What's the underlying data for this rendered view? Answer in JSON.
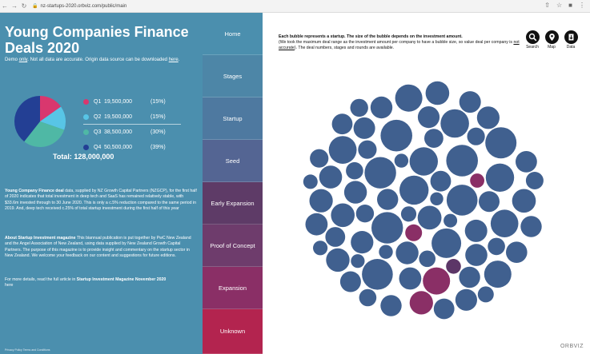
{
  "browser": {
    "url": "nz-startups-2020.orbviz.com/public/main",
    "back_icon": "back-arrow-icon",
    "forward_icon": "forward-arrow-icon",
    "reload_icon": "reload-icon"
  },
  "header": {
    "title": "Young Companies Finance Deals 2020",
    "demo_prefix": "Demo ",
    "demo_only": "only",
    "demo_middle": ". Not all data are accurate. Origin data source can be downloaded ",
    "demo_link": "here",
    "demo_suffix": "."
  },
  "pie": {
    "colors": [
      "#d9376e",
      "#58c5e6",
      "#4fb8a5",
      "#233f94"
    ],
    "legend": [
      {
        "q": "Q1",
        "value": "19,500,000",
        "pct": "(15%)"
      },
      {
        "q": "Q2",
        "value": "19,500,000",
        "pct": "(15%)"
      },
      {
        "q": "Q3",
        "value": "38,500,000",
        "pct": "(30%)"
      },
      {
        "q": "Q4",
        "value": "50,500,000",
        "pct": "(39%)"
      }
    ],
    "shares": [
      0.15,
      0.15,
      0.3,
      0.39
    ],
    "total_label": "Total:",
    "total_value": "128,000,000"
  },
  "paragraphs": {
    "p1_bold": "Young Company Finance deal",
    "p1_text": " data, supplied by NZ Growth Capital Partners (NZGCP), for the first half of 2020 indicates that total investment in deep tech and SaaS has remained relatively stable, with $33.6m invested through to 30 June 2020. This is only a c.5% reduction compared to the same period in 2019. And, deep tech received c.25% of total startup investment during the first half of this year",
    "p2_bold": "About Startup Investment magazine",
    "p2_text": " This biannual publication is put together by PwC New Zealand and the Angel Association of New Zealand, using data supplied by New Zealand Growth Capital Partners. The purpose of this magazine is to provide insight and commentary on the startup sector in New Zealand. We welcome your feedback on our content and suggestions for future editions.",
    "p3_text": "For more details, read the full article in ",
    "p3_bold": "Startup Investment Magazine November 2020",
    "p3_link": "here",
    "footer": "Privacy Policy  Terms and Conditions"
  },
  "tabs": [
    {
      "label": "Home",
      "color": "#4b8fae"
    },
    {
      "label": "Stages",
      "color": "#4d86a7"
    },
    {
      "label": "Startup",
      "color": "#4e79a0"
    },
    {
      "label": "Seed",
      "color": "#546593"
    },
    {
      "label": "Early Expansion",
      "color": "#5e3b67"
    },
    {
      "label": "Proof of Concept",
      "color": "#6e3c6c"
    },
    {
      "label": "Expansion",
      "color": "#8a2f66"
    },
    {
      "label": "Unknown",
      "color": "#b3244f"
    }
  ],
  "info": {
    "line1_bold": "Each bubble represents a startup. The size of the bubble depends on the investment amount.",
    "line2_prefix": "(We took the maximum deal range as the investment amount per company to have a bubble size, so value deal per company is ",
    "line2_not": "not accurate",
    "line2_suffix": "). The deal numbers, stages and rounds are available."
  },
  "toolbar": {
    "search_label": "Search",
    "map_label": "Map",
    "data_label": "Data",
    "search_icon": "search-icon",
    "map_icon": "map-pin-icon",
    "data_icon": "download-icon"
  },
  "bubble_colors": {
    "blue": "#40608f",
    "purple": "#5c3667",
    "magenta": "#8a2f66",
    "red": "#b3244f"
  },
  "logo": "ORBVIZ"
}
